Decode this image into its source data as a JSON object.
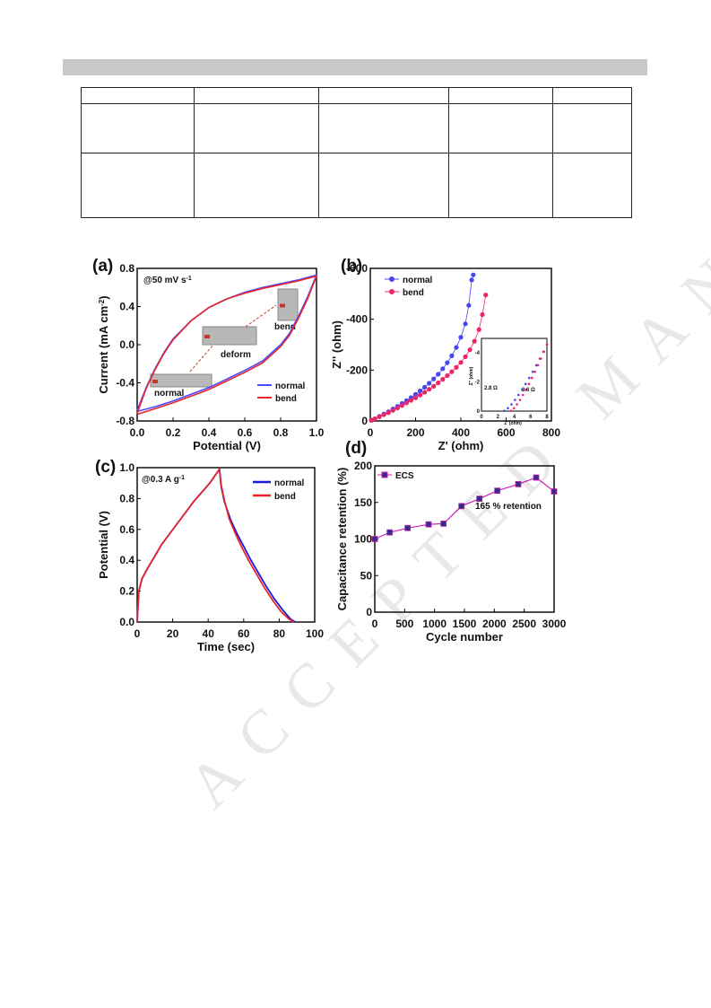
{
  "watermark": "ACCEPTED MANUSCRIPT",
  "table": {
    "rows": 3,
    "cols": 5
  },
  "chart_data": [
    {
      "panel": "(a)",
      "type": "line",
      "annotation": "@50 mV s",
      "annotation_sup": "-1",
      "xlabel": "Potential (V)",
      "ylabel": "Current (mA cm",
      "ylabel_sup": "-2",
      "ylabel_end": ")",
      "xlim": [
        0.0,
        1.0
      ],
      "ylim": [
        -0.8,
        0.8
      ],
      "xticks": [
        "0.0",
        "0.2",
        "0.4",
        "0.6",
        "0.8",
        "1.0"
      ],
      "yticks": [
        "-0.8",
        "-0.4",
        "0.0",
        "0.4",
        "0.8"
      ],
      "inset_labels": [
        "normal",
        "deform",
        "bend"
      ],
      "legend_position": "bottom-right",
      "series": [
        {
          "name": "normal",
          "color": "#4a4aff",
          "upper": [
            [
              0,
              -0.69
            ],
            [
              0.05,
              -0.45
            ],
            [
              0.1,
              -0.25
            ],
            [
              0.15,
              -0.08
            ],
            [
              0.2,
              0.06
            ],
            [
              0.3,
              0.25
            ],
            [
              0.4,
              0.39
            ],
            [
              0.5,
              0.48
            ],
            [
              0.6,
              0.55
            ],
            [
              0.7,
              0.6
            ],
            [
              0.8,
              0.64
            ],
            [
              0.9,
              0.68
            ],
            [
              1.0,
              0.73
            ]
          ],
          "lower": [
            [
              1.0,
              0.73
            ],
            [
              0.95,
              0.5
            ],
            [
              0.9,
              0.3
            ],
            [
              0.85,
              0.12
            ],
            [
              0.8,
              0.0
            ],
            [
              0.7,
              -0.17
            ],
            [
              0.6,
              -0.27
            ],
            [
              0.5,
              -0.36
            ],
            [
              0.4,
              -0.45
            ],
            [
              0.3,
              -0.52
            ],
            [
              0.2,
              -0.59
            ],
            [
              0.1,
              -0.65
            ],
            [
              0,
              -0.7
            ]
          ]
        },
        {
          "name": "bend",
          "color": "#e8252b",
          "upper": [
            [
              0,
              -0.72
            ],
            [
              0.05,
              -0.46
            ],
            [
              0.1,
              -0.26
            ],
            [
              0.15,
              -0.09
            ],
            [
              0.2,
              0.05
            ],
            [
              0.3,
              0.25
            ],
            [
              0.4,
              0.39
            ],
            [
              0.5,
              0.48
            ],
            [
              0.6,
              0.54
            ],
            [
              0.7,
              0.59
            ],
            [
              0.8,
              0.63
            ],
            [
              0.9,
              0.67
            ],
            [
              1.0,
              0.72
            ]
          ],
          "lower": [
            [
              1.0,
              0.72
            ],
            [
              0.95,
              0.48
            ],
            [
              0.9,
              0.28
            ],
            [
              0.85,
              0.1
            ],
            [
              0.8,
              -0.02
            ],
            [
              0.7,
              -0.19
            ],
            [
              0.6,
              -0.29
            ],
            [
              0.5,
              -0.38
            ],
            [
              0.4,
              -0.47
            ],
            [
              0.3,
              -0.54
            ],
            [
              0.2,
              -0.61
            ],
            [
              0.1,
              -0.67
            ],
            [
              0,
              -0.73
            ]
          ]
        }
      ]
    },
    {
      "panel": "(b)",
      "type": "scatter",
      "xlabel": "Z' (ohm)",
      "ylabel": "Z'' (ohm)",
      "xlim": [
        0,
        800
      ],
      "ylim": [
        0,
        -660
      ],
      "xticks": [
        "0",
        "200",
        "400",
        "600",
        "800"
      ],
      "yticks": [
        "0",
        "-200",
        "-400",
        "-600"
      ],
      "legend_position": "top-left",
      "series": [
        {
          "name": "normal",
          "color": "#4646f0",
          "points": [
            [
              5,
              -3
            ],
            [
              20,
              -10
            ],
            [
              40,
              -20
            ],
            [
              60,
              -30
            ],
            [
              80,
              -40
            ],
            [
              100,
              -52
            ],
            [
              120,
              -63
            ],
            [
              140,
              -76
            ],
            [
              160,
              -88
            ],
            [
              180,
              -101
            ],
            [
              200,
              -115
            ],
            [
              220,
              -130
            ],
            [
              240,
              -146
            ],
            [
              260,
              -163
            ],
            [
              280,
              -182
            ],
            [
              300,
              -202
            ],
            [
              320,
              -226
            ],
            [
              340,
              -252
            ],
            [
              360,
              -282
            ],
            [
              380,
              -318
            ],
            [
              400,
              -362
            ],
            [
              420,
              -420
            ],
            [
              435,
              -500
            ],
            [
              448,
              -610
            ],
            [
              455,
              -632
            ]
          ]
        },
        {
          "name": "bend",
          "color": "#ee2466",
          "points": [
            [
              5,
              -3
            ],
            [
              20,
              -9
            ],
            [
              40,
              -18
            ],
            [
              60,
              -27
            ],
            [
              80,
              -36
            ],
            [
              100,
              -46
            ],
            [
              120,
              -56
            ],
            [
              140,
              -67
            ],
            [
              160,
              -78
            ],
            [
              180,
              -89
            ],
            [
              200,
              -100
            ],
            [
              220,
              -112
            ],
            [
              240,
              -124
            ],
            [
              260,
              -137
            ],
            [
              280,
              -150
            ],
            [
              300,
              -165
            ],
            [
              320,
              -180
            ],
            [
              340,
              -196
            ],
            [
              360,
              -213
            ],
            [
              380,
              -232
            ],
            [
              400,
              -253
            ],
            [
              420,
              -278
            ],
            [
              440,
              -308
            ],
            [
              460,
              -345
            ],
            [
              480,
              -395
            ],
            [
              495,
              -460
            ],
            [
              510,
              -545
            ]
          ]
        }
      ],
      "inset": {
        "xlabel": "Z' (ohm)",
        "ylabel": "Z'' (ohm)",
        "xticks": [
          "0",
          "2",
          "4",
          "6",
          "8"
        ],
        "yticks": [
          "-4",
          "-2",
          "0"
        ],
        "xlim": [
          0,
          8
        ],
        "ylim": [
          0,
          -5
        ],
        "annotations": [
          "2.8 Ω",
          "3.6 Ω"
        ],
        "series": [
          {
            "name": "normal",
            "color": "#4646f0",
            "start": 2.8
          },
          {
            "name": "bend",
            "color": "#ee2466",
            "start": 3.6
          }
        ]
      }
    },
    {
      "panel": "(c)",
      "type": "line",
      "annotation": "@0.3 A g",
      "annotation_sup": "-1",
      "xlabel": "Time (sec)",
      "ylabel": "Potential (V)",
      "xlim": [
        0,
        110
      ],
      "ylim": [
        0.0,
        1.0
      ],
      "xticks": [
        "0",
        "20",
        "40",
        "60",
        "80",
        "100"
      ],
      "yticks": [
        "0.0",
        "0.2",
        "0.4",
        "0.6",
        "0.8",
        "1.0"
      ],
      "legend_position": "top-right",
      "series": [
        {
          "name": "normal",
          "color": "#1a1ad6",
          "points": [
            [
              0,
              0
            ],
            [
              1,
              0.2
            ],
            [
              3,
              0.28
            ],
            [
              6,
              0.34
            ],
            [
              10,
              0.41
            ],
            [
              15,
              0.5
            ],
            [
              20,
              0.57
            ],
            [
              25,
              0.64
            ],
            [
              30,
              0.71
            ],
            [
              35,
              0.78
            ],
            [
              40,
              0.84
            ],
            [
              45,
              0.9
            ],
            [
              49,
              0.96
            ],
            [
              51,
              0.99
            ],
            [
              52,
              0.88
            ],
            [
              54,
              0.78
            ],
            [
              58,
              0.66
            ],
            [
              62,
              0.57
            ],
            [
              66,
              0.49
            ],
            [
              70,
              0.41
            ],
            [
              75,
              0.32
            ],
            [
              80,
              0.23
            ],
            [
              85,
              0.15
            ],
            [
              90,
              0.08
            ],
            [
              95,
              0.02
            ],
            [
              98,
              0.0
            ]
          ]
        },
        {
          "name": "bend",
          "color": "#e8252b",
          "points": [
            [
              0,
              0
            ],
            [
              1,
              0.2
            ],
            [
              3,
              0.28
            ],
            [
              6,
              0.34
            ],
            [
              10,
              0.41
            ],
            [
              15,
              0.5
            ],
            [
              20,
              0.57
            ],
            [
              25,
              0.64
            ],
            [
              30,
              0.71
            ],
            [
              35,
              0.78
            ],
            [
              40,
              0.84
            ],
            [
              45,
              0.9
            ],
            [
              49,
              0.96
            ],
            [
              51,
              0.99
            ],
            [
              52,
              0.89
            ],
            [
              54,
              0.79
            ],
            [
              57,
              0.67
            ],
            [
              61,
              0.57
            ],
            [
              65,
              0.48
            ],
            [
              69,
              0.4
            ],
            [
              74,
              0.31
            ],
            [
              79,
              0.22
            ],
            [
              84,
              0.14
            ],
            [
              89,
              0.07
            ],
            [
              94,
              0.02
            ],
            [
              97,
              0.0
            ]
          ]
        }
      ]
    },
    {
      "panel": "(d)",
      "type": "line",
      "xlabel": "Cycle number",
      "ylabel": "Capacitance retention (%)",
      "annotation": "165 % retention",
      "xlim": [
        0,
        3000
      ],
      "ylim": [
        0,
        200
      ],
      "xticks": [
        "0",
        "500",
        "1000",
        "1500",
        "2000",
        "2500",
        "3000"
      ],
      "yticks": [
        "0",
        "50",
        "100",
        "150",
        "200"
      ],
      "legend_position": "top-left",
      "series": [
        {
          "name": "ECS",
          "color": "#d01fb5",
          "marker_color": "#3a2a8a",
          "points": [
            [
              0,
              100
            ],
            [
              250,
              109
            ],
            [
              550,
              115
            ],
            [
              900,
              120
            ],
            [
              1150,
              121
            ],
            [
              1450,
              145
            ],
            [
              1750,
              155
            ],
            [
              2050,
              166
            ],
            [
              2400,
              175
            ],
            [
              2700,
              184
            ],
            [
              3000,
              165
            ]
          ]
        }
      ]
    }
  ]
}
